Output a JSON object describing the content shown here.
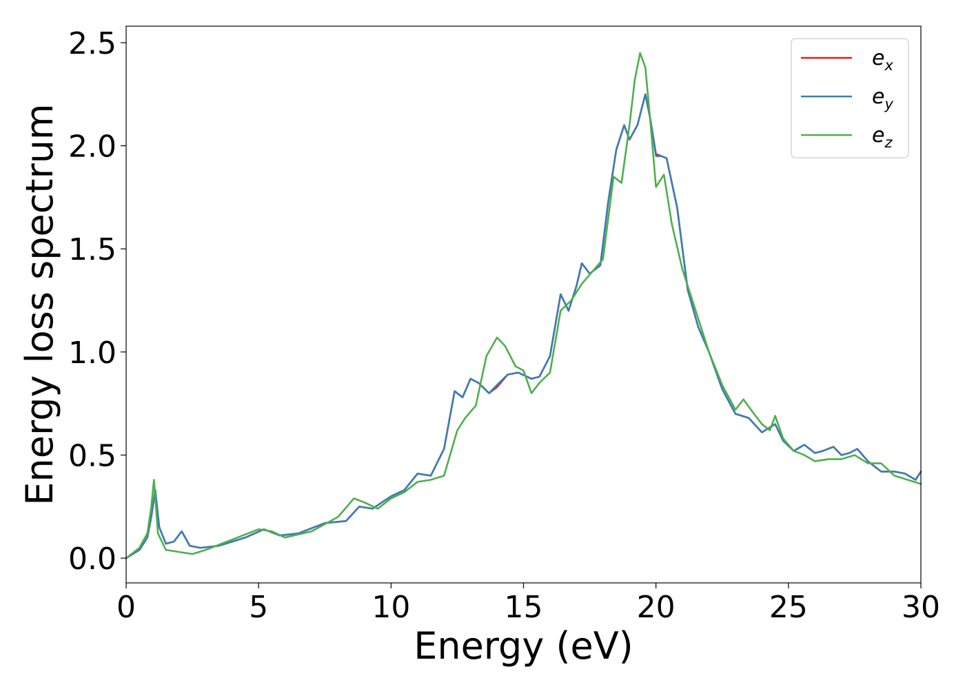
{
  "chart_data": {
    "type": "line",
    "title": "",
    "xlabel": "Energy (eV)",
    "ylabel": "Energy loss spectrum",
    "xlim": [
      0,
      30
    ],
    "ylim": [
      -0.12,
      2.58
    ],
    "xticks": [
      0,
      5,
      10,
      15,
      20,
      25,
      30
    ],
    "xtick_labels": [
      "0",
      "5",
      "10",
      "15",
      "20",
      "25",
      "30"
    ],
    "yticks": [
      0.0,
      0.5,
      1.0,
      1.5,
      2.0,
      2.5
    ],
    "ytick_labels": [
      "0.0",
      "0.5",
      "1.0",
      "1.5",
      "2.0",
      "2.5"
    ],
    "grid": false,
    "legend_position": "top-right",
    "series": [
      {
        "name": "e_x",
        "legend_main": "e",
        "legend_sub": "x",
        "color": "#e41a1c",
        "x": [
          0,
          0.5,
          0.8,
          0.95,
          1.1,
          1.25,
          1.5,
          1.8,
          2.1,
          2.4,
          2.8,
          3.5,
          4.5,
          5.2,
          5.8,
          6.5,
          7.5,
          8.3,
          8.8,
          9.3,
          10.0,
          10.5,
          11.0,
          11.5,
          12.0,
          12.4,
          12.7,
          13.0,
          13.3,
          13.7,
          14.0,
          14.4,
          14.8,
          15.3,
          15.6,
          16.0,
          16.4,
          16.7,
          17.0,
          17.2,
          17.5,
          17.9,
          18.2,
          18.5,
          18.8,
          19.0,
          19.3,
          19.6,
          19.8,
          20.0,
          20.2,
          20.4,
          20.8,
          21.2,
          21.6,
          22.0,
          22.5,
          23.0,
          23.5,
          24.0,
          24.5,
          24.8,
          25.2,
          25.6,
          26.0,
          26.3,
          26.7,
          27.0,
          27.3,
          27.6,
          28.0,
          28.5,
          29.0,
          29.4,
          29.8,
          30.0
        ],
        "values": [
          0.0,
          0.04,
          0.1,
          0.2,
          0.33,
          0.15,
          0.07,
          0.08,
          0.13,
          0.06,
          0.05,
          0.06,
          0.1,
          0.14,
          0.11,
          0.12,
          0.17,
          0.18,
          0.25,
          0.24,
          0.3,
          0.33,
          0.41,
          0.4,
          0.53,
          0.81,
          0.78,
          0.87,
          0.85,
          0.8,
          0.83,
          0.89,
          0.9,
          0.87,
          0.88,
          0.98,
          1.28,
          1.2,
          1.32,
          1.43,
          1.38,
          1.42,
          1.73,
          1.98,
          2.1,
          2.03,
          2.1,
          2.25,
          2.12,
          1.96,
          1.95,
          1.94,
          1.7,
          1.3,
          1.12,
          1.0,
          0.82,
          0.7,
          0.68,
          0.61,
          0.65,
          0.57,
          0.52,
          0.55,
          0.51,
          0.52,
          0.54,
          0.5,
          0.51,
          0.53,
          0.47,
          0.42,
          0.42,
          0.41,
          0.38,
          0.42
        ]
      },
      {
        "name": "e_y",
        "legend_main": "e",
        "legend_sub": "y",
        "color": "#377eb8",
        "x": [
          0,
          0.5,
          0.8,
          0.95,
          1.1,
          1.25,
          1.5,
          1.8,
          2.1,
          2.4,
          2.8,
          3.5,
          4.5,
          5.2,
          5.8,
          6.5,
          7.5,
          8.3,
          8.8,
          9.3,
          10.0,
          10.5,
          11.0,
          11.5,
          12.0,
          12.4,
          12.7,
          13.0,
          13.3,
          13.7,
          14.0,
          14.4,
          14.8,
          15.3,
          15.6,
          16.0,
          16.4,
          16.7,
          17.0,
          17.2,
          17.5,
          17.9,
          18.2,
          18.5,
          18.8,
          19.0,
          19.3,
          19.6,
          19.8,
          20.0,
          20.2,
          20.4,
          20.8,
          21.2,
          21.6,
          22.0,
          22.5,
          23.0,
          23.5,
          24.0,
          24.5,
          24.8,
          25.2,
          25.6,
          26.0,
          26.3,
          26.7,
          27.0,
          27.3,
          27.6,
          28.0,
          28.5,
          29.0,
          29.4,
          29.8,
          30.0
        ],
        "values": [
          0.0,
          0.04,
          0.1,
          0.2,
          0.33,
          0.15,
          0.07,
          0.08,
          0.13,
          0.06,
          0.05,
          0.06,
          0.1,
          0.14,
          0.11,
          0.12,
          0.17,
          0.18,
          0.25,
          0.24,
          0.3,
          0.33,
          0.41,
          0.4,
          0.53,
          0.81,
          0.78,
          0.87,
          0.85,
          0.8,
          0.84,
          0.89,
          0.9,
          0.87,
          0.88,
          0.98,
          1.28,
          1.2,
          1.32,
          1.43,
          1.38,
          1.42,
          1.73,
          1.98,
          2.1,
          2.03,
          2.1,
          2.25,
          2.12,
          1.95,
          1.95,
          1.94,
          1.7,
          1.3,
          1.12,
          1.0,
          0.82,
          0.7,
          0.68,
          0.61,
          0.65,
          0.57,
          0.52,
          0.55,
          0.51,
          0.52,
          0.54,
          0.5,
          0.51,
          0.53,
          0.47,
          0.42,
          0.42,
          0.41,
          0.38,
          0.42
        ]
      },
      {
        "name": "e_z",
        "legend_main": "e",
        "legend_sub": "z",
        "color": "#4daf4a",
        "x": [
          0,
          0.5,
          0.8,
          0.95,
          1.05,
          1.2,
          1.5,
          2.0,
          2.5,
          3.0,
          4.0,
          5.0,
          5.5,
          6.0,
          7.0,
          8.0,
          8.6,
          9.0,
          9.5,
          10.0,
          10.5,
          11.0,
          11.5,
          12.0,
          12.5,
          12.8,
          13.2,
          13.6,
          14.0,
          14.3,
          14.7,
          15.0,
          15.3,
          15.6,
          16.0,
          16.4,
          16.8,
          17.2,
          17.6,
          18.0,
          18.4,
          18.7,
          19.0,
          19.2,
          19.4,
          19.6,
          19.8,
          20.0,
          20.3,
          20.6,
          21.0,
          21.5,
          22.0,
          22.5,
          23.0,
          23.3,
          23.7,
          24.0,
          24.3,
          24.5,
          24.8,
          25.2,
          25.6,
          26.0,
          26.5,
          27.0,
          27.5,
          28.0,
          28.5,
          29.0,
          29.5,
          30.0
        ],
        "values": [
          0.0,
          0.05,
          0.12,
          0.25,
          0.38,
          0.12,
          0.04,
          0.03,
          0.02,
          0.04,
          0.09,
          0.14,
          0.13,
          0.1,
          0.13,
          0.2,
          0.29,
          0.27,
          0.24,
          0.29,
          0.32,
          0.37,
          0.38,
          0.4,
          0.62,
          0.68,
          0.74,
          0.98,
          1.07,
          1.03,
          0.93,
          0.91,
          0.8,
          0.85,
          0.9,
          1.2,
          1.25,
          1.33,
          1.39,
          1.45,
          1.85,
          1.82,
          2.1,
          2.32,
          2.45,
          2.38,
          2.1,
          1.8,
          1.86,
          1.62,
          1.4,
          1.2,
          1.0,
          0.84,
          0.72,
          0.77,
          0.7,
          0.65,
          0.62,
          0.69,
          0.58,
          0.52,
          0.5,
          0.47,
          0.48,
          0.48,
          0.5,
          0.46,
          0.46,
          0.4,
          0.38,
          0.36
        ]
      }
    ]
  }
}
